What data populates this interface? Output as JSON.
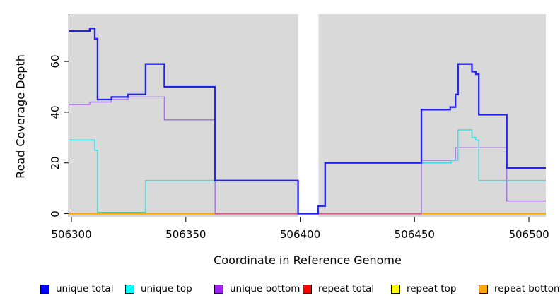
{
  "chart_data": {
    "type": "line",
    "step": true,
    "title": "",
    "xlabel": "Coordinate in Reference Genome",
    "ylabel": "Read Coverage Depth",
    "x_axis": {
      "ticks": [
        506300,
        506350,
        506400,
        506450,
        506500
      ],
      "tick_labels": [
        "506300",
        "506350",
        "506400",
        "506450",
        "506500"
      ],
      "range": [
        506299,
        506507
      ]
    },
    "y_axis": {
      "ticks": [
        0,
        20,
        40,
        60
      ],
      "tick_labels": [
        "0",
        "20",
        "40",
        "60"
      ],
      "range": [
        -1.3,
        79.3
      ]
    },
    "plot_bg": "#d9d9d9",
    "grid": false,
    "legend_position": "bottom",
    "gap_region": {
      "x0": 506399.1,
      "x1": 506408
    },
    "series": [
      {
        "name": "unique total",
        "color": "#2323ef",
        "legend_color": "#0000ff",
        "width": 2.3,
        "steps": [
          [
            506299,
            72
          ],
          [
            506308,
            73
          ],
          [
            506310.2,
            69
          ],
          [
            506311.4,
            45
          ],
          [
            506317.5,
            46
          ],
          [
            506324.7,
            47
          ],
          [
            506332.4,
            59
          ],
          [
            506340.6,
            50
          ],
          [
            506362.8,
            13
          ],
          [
            506399.1,
            0
          ],
          [
            506407.8,
            3
          ],
          [
            506410.9,
            20
          ],
          [
            506453,
            41
          ],
          [
            506465.6,
            42
          ],
          [
            506467.9,
            47
          ],
          [
            506469,
            59
          ],
          [
            506475.1,
            56
          ],
          [
            506476.8,
            55
          ],
          [
            506478.1,
            39
          ],
          [
            506490.3,
            18
          ]
        ]
      },
      {
        "name": "unique top",
        "color": "#3fdbe3",
        "legend_color": "#00ffff",
        "width": 1.5,
        "steps": [
          [
            506299,
            29
          ],
          [
            506310.2,
            25
          ],
          [
            506311.4,
            0.45
          ],
          [
            506332.4,
            13
          ],
          [
            506399.1,
            0
          ],
          [
            506407.8,
            3
          ],
          [
            506410.9,
            20
          ],
          [
            506466,
            21
          ],
          [
            506469,
            33
          ],
          [
            506475.1,
            30
          ],
          [
            506476.8,
            29
          ],
          [
            506478.1,
            13
          ]
        ]
      },
      {
        "name": "unique bottom",
        "color": "#a874e2",
        "legend_color": "#a020f0",
        "width": 1.5,
        "steps": [
          [
            506299,
            43
          ],
          [
            506308,
            44
          ],
          [
            506317.5,
            45
          ],
          [
            506324.7,
            46
          ],
          [
            506340.6,
            37
          ],
          [
            506362.8,
            0
          ],
          [
            506453,
            21
          ],
          [
            506467.9,
            26
          ],
          [
            506490.3,
            5
          ]
        ]
      },
      {
        "name": "repeat total",
        "color": "#ff0000",
        "legend_color": "#ff0000",
        "width": 1.5,
        "steps": [
          [
            506299,
            0
          ]
        ]
      },
      {
        "name": "repeat top",
        "color": "#ffff00",
        "legend_color": "#ffff00",
        "width": 1.5,
        "steps": [
          [
            506299,
            0
          ]
        ]
      },
      {
        "name": "repeat bottom",
        "color": "#ffa500",
        "legend_color": "#ffa500",
        "width": 2.2,
        "steps": [
          [
            506299,
            0
          ]
        ]
      }
    ],
    "baseline_overlays": [
      {
        "x0": 506311.4,
        "x1": 506332.4,
        "y": 0.45,
        "color": "#5cbf90",
        "width": 1.6
      },
      {
        "x0": 506362.8,
        "x1": 506453,
        "y": 0,
        "color": "#d2577f",
        "width": 2
      }
    ]
  },
  "legend_swatch_lefts": [
    57,
    177,
    303,
    428,
    553,
    677
  ]
}
